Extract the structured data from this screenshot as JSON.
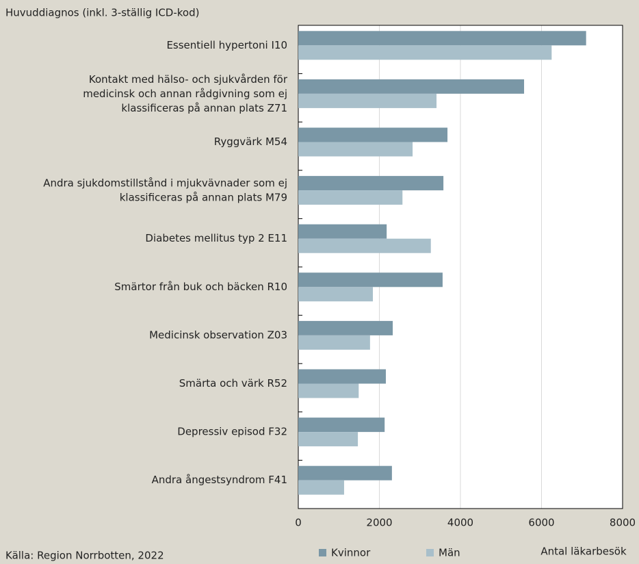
{
  "chart_data": {
    "type": "barh",
    "y_axis_title": "Huvuddiagnos (inkl. 3-ställig ICD-kod)",
    "x_axis_title": "Antal läkarbesök",
    "source": "Källa: Region Norrbotten, 2022",
    "categories": [
      "Essentiell hypertoni I10",
      "Kontakt med hälso- och sjukvården för\nmedicinsk och annan rådgivning som ej\nklassificeras på annan plats Z71",
      "Ryggvärk M54",
      "Andra sjukdomstillstånd i mjukvävnader som ej\nklassificeras på annan plats M79",
      "Diabetes mellitus typ 2 E11",
      "Smärtor från buk och bäcken R10",
      "Medicinsk observation Z03",
      "Smärta och värk R52",
      "Depressiv episod F32",
      "Andra ångestsyndrom F41"
    ],
    "series": [
      {
        "name": "Kvinnor",
        "color": "#7a97a6",
        "values": [
          7100,
          5570,
          3680,
          3580,
          2180,
          3560,
          2330,
          2160,
          2130,
          2310
        ]
      },
      {
        "name": "Män",
        "color": "#a8bfca",
        "values": [
          6250,
          3410,
          2820,
          2570,
          3270,
          1840,
          1770,
          1490,
          1470,
          1130
        ]
      }
    ],
    "xlim": [
      0,
      8000
    ],
    "xticks": [
      0,
      2000,
      4000,
      6000,
      8000
    ],
    "grid": true,
    "legend": "bottom"
  }
}
